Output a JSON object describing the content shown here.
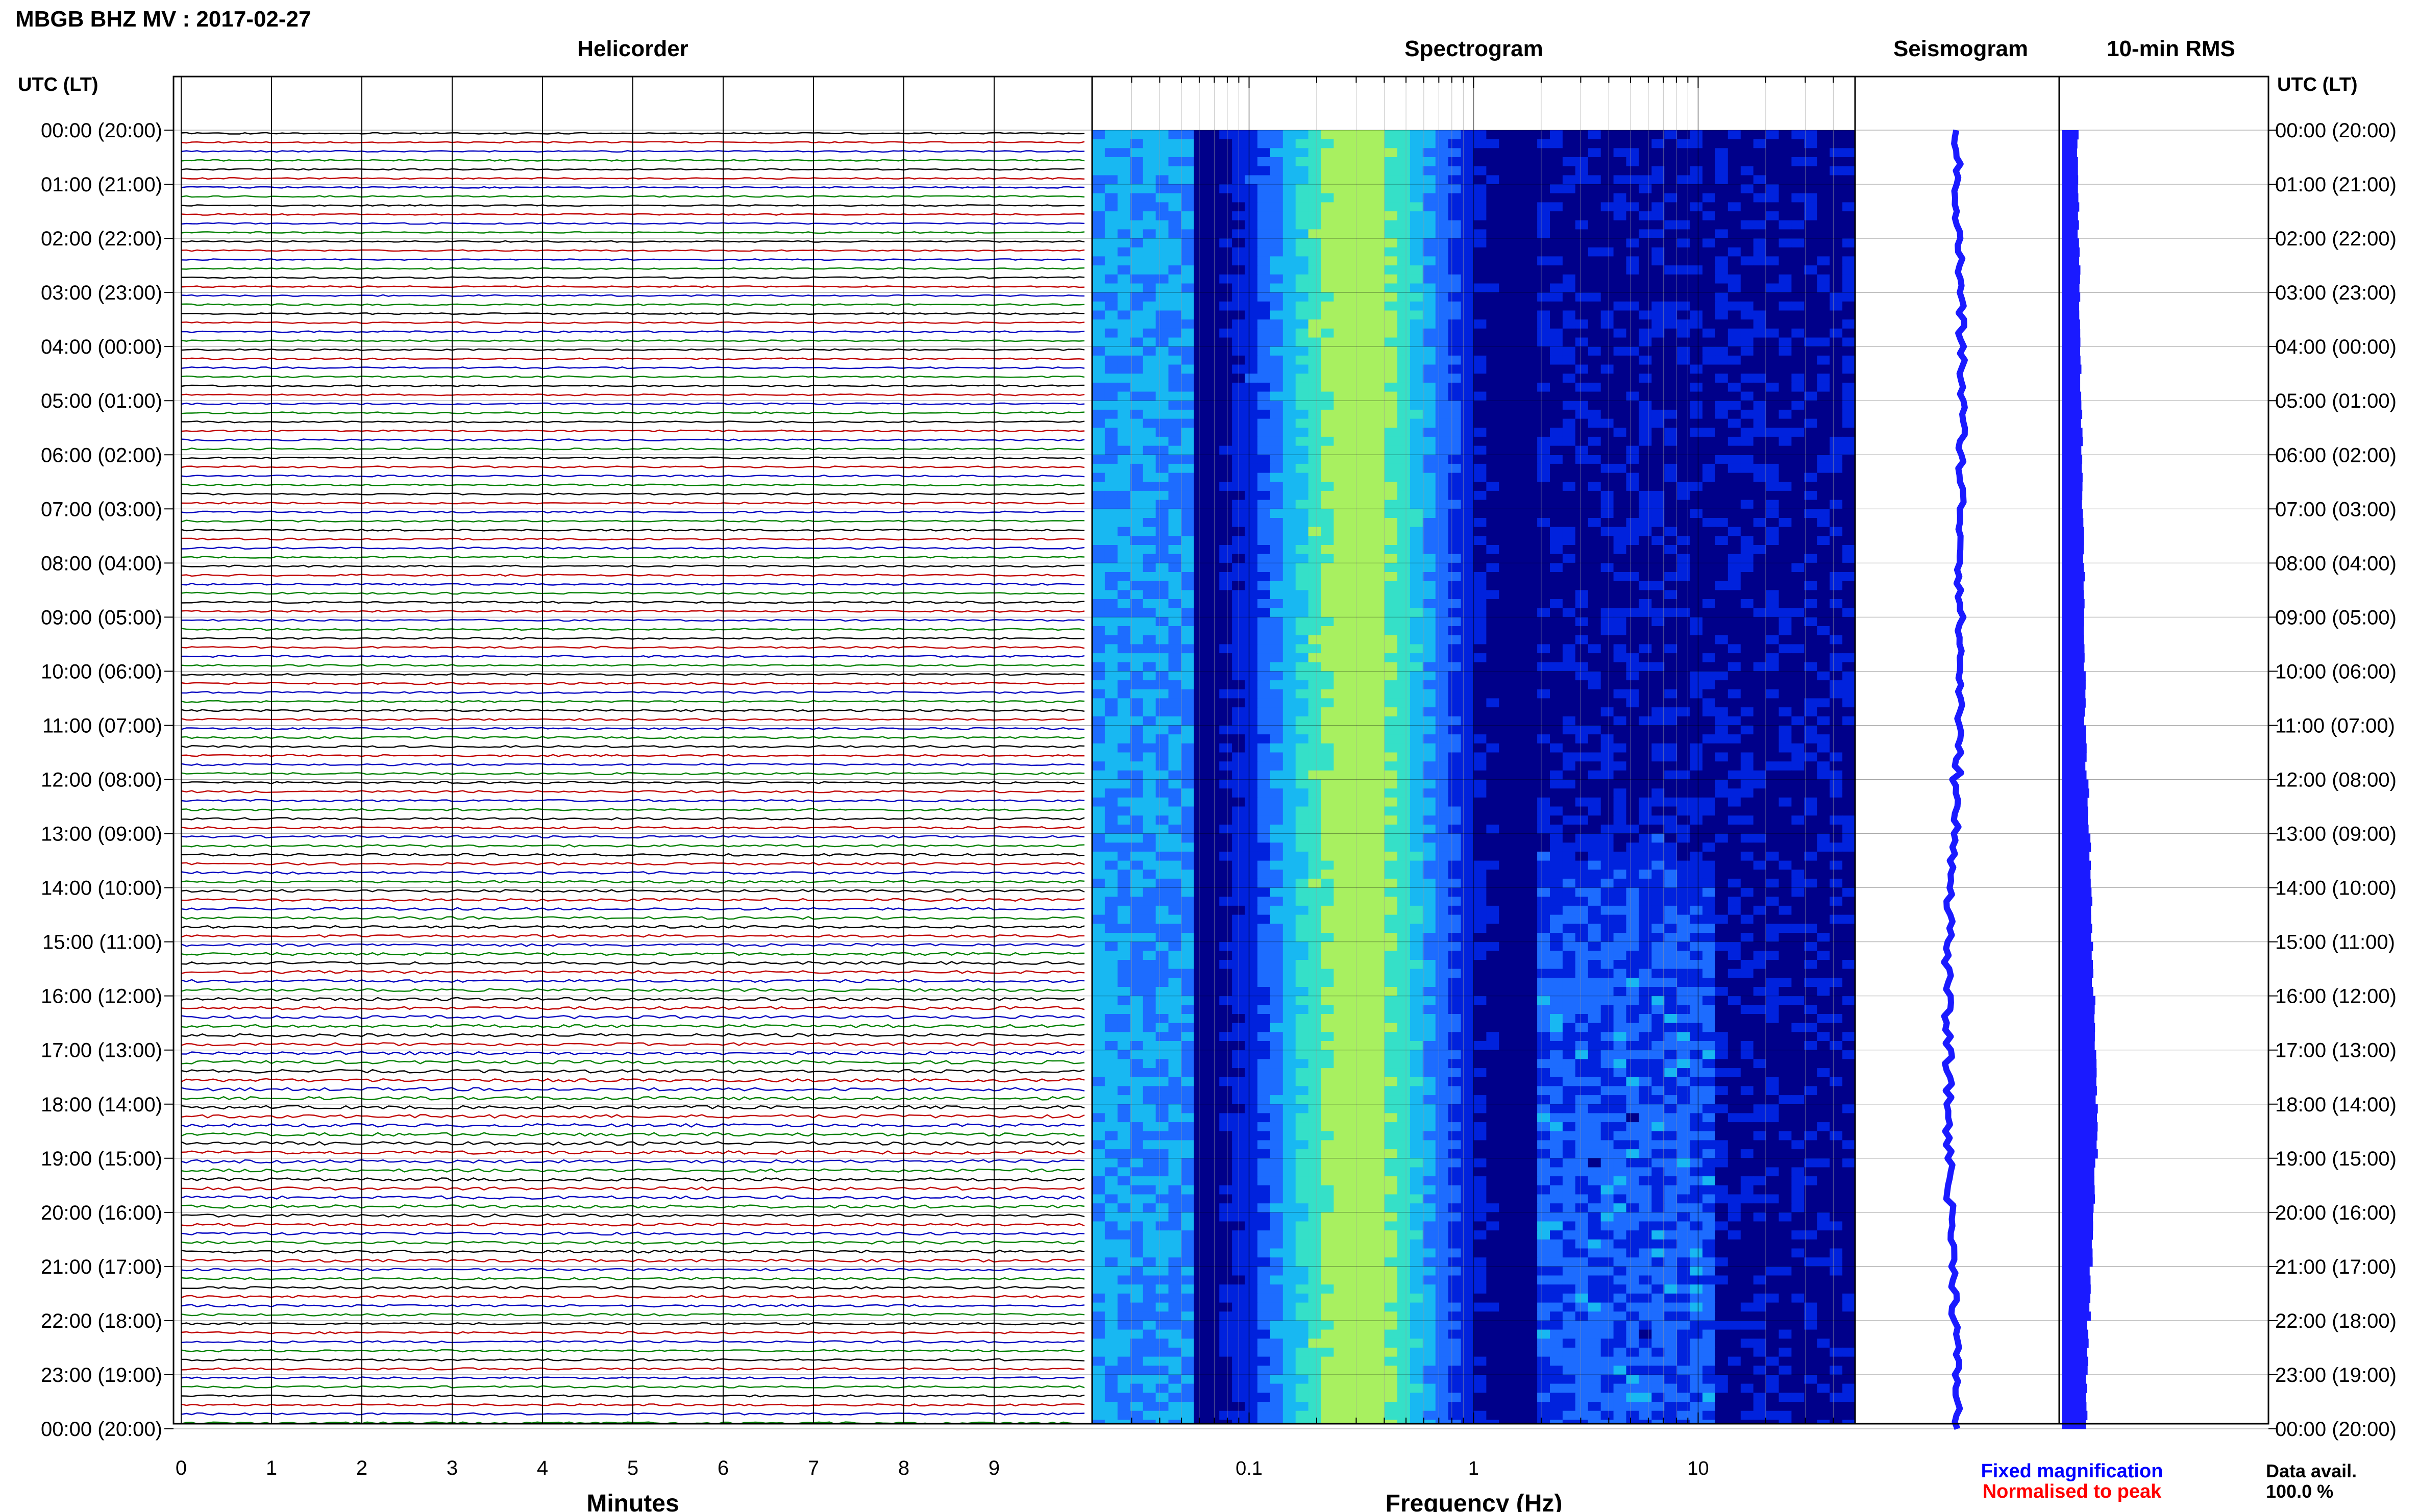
{
  "header": {
    "station_title": "MBGB BHZ MV : 2017-02-27"
  },
  "panels": {
    "helicorder": "Helicorder",
    "spectrogram": "Spectrogram",
    "seismogram": "Seismogram",
    "rms": "10-min RMS"
  },
  "axis_labels": {
    "left_time": "UTC (LT)",
    "right_time": "UTC (LT)",
    "minutes": "Minutes",
    "frequency": "Frequency (Hz)"
  },
  "footer": {
    "fixed_magnification": "Fixed magnification",
    "normalised_to_peak": "Normalised to peak",
    "data_avail_label": "Data avail.",
    "data_avail_value": "100.0 %"
  },
  "colors": {
    "trace_colors": [
      "#000000",
      "#c00000",
      "#0000c0",
      "#008000"
    ],
    "seismogram": "#1a1aff",
    "rms_bar": "#1a1aff",
    "fixed_magnification_text": "#0000ff",
    "normalised_text": "#ff0000",
    "spectrogram_colormap": [
      "#00008a",
      "#0022dd",
      "#1d6cff",
      "#18b8f2",
      "#35e0c8",
      "#a8f060",
      "#e8f53a"
    ]
  },
  "chart_data": [
    {
      "type": "line",
      "name": "helicorder",
      "time_ticks": [
        "00:00 (20:00)",
        "01:00 (21:00)",
        "02:00 (22:00)",
        "03:00 (23:00)",
        "04:00 (00:00)",
        "05:00 (01:00)",
        "06:00 (02:00)",
        "07:00 (03:00)",
        "08:00 (04:00)",
        "09:00 (05:00)",
        "10:00 (06:00)",
        "11:00 (07:00)",
        "12:00 (08:00)",
        "13:00 (09:00)",
        "14:00 (10:00)",
        "15:00 (11:00)",
        "16:00 (12:00)",
        "17:00 (13:00)",
        "18:00 (14:00)",
        "19:00 (15:00)",
        "20:00 (16:00)",
        "21:00 (17:00)",
        "22:00 (18:00)",
        "23:00 (19:00)",
        "00:00 (20:00)"
      ],
      "minute_ticks": [
        "0",
        "1",
        "2",
        "3",
        "4",
        "5",
        "6",
        "7",
        "8",
        "9"
      ],
      "xlim": [
        0,
        10
      ],
      "traces_per_hour": 6,
      "hourly_amplitude": [
        0.3,
        0.3,
        0.3,
        0.32,
        0.33,
        0.35,
        0.36,
        0.37,
        0.38,
        0.38,
        0.4,
        0.42,
        0.45,
        0.5,
        0.55,
        0.6,
        0.65,
        0.7,
        0.72,
        0.68,
        0.6,
        0.5,
        0.45,
        0.42
      ]
    },
    {
      "type": "heatmap",
      "name": "spectrogram",
      "xscale": "log",
      "xlim": [
        0.02,
        50
      ],
      "x_ticks": [
        "0.1",
        "1",
        "10"
      ],
      "x_tick_values": [
        0.1,
        1,
        10
      ],
      "peak_band_hz": [
        0.2,
        0.5
      ],
      "high_energy_window_utc": [
        "12:00",
        "24:00"
      ]
    },
    {
      "type": "line",
      "name": "seismogram",
      "hourly_offset": [
        0.0,
        0.0,
        0.05,
        0.08,
        0.1,
        0.1,
        0.08,
        0.08,
        0.06,
        0.06,
        0.06,
        0.02,
        -0.03,
        -0.08,
        -0.15,
        -0.2,
        -0.2,
        -0.18,
        -0.18,
        -0.15,
        -0.1,
        -0.05,
        -0.02,
        0.0
      ]
    },
    {
      "type": "bar",
      "name": "rms",
      "hourly_rms": [
        0.27,
        0.28,
        0.3,
        0.3,
        0.32,
        0.34,
        0.35,
        0.37,
        0.38,
        0.38,
        0.39,
        0.41,
        0.45,
        0.48,
        0.5,
        0.52,
        0.56,
        0.58,
        0.6,
        0.55,
        0.52,
        0.48,
        0.44,
        0.42
      ]
    }
  ]
}
